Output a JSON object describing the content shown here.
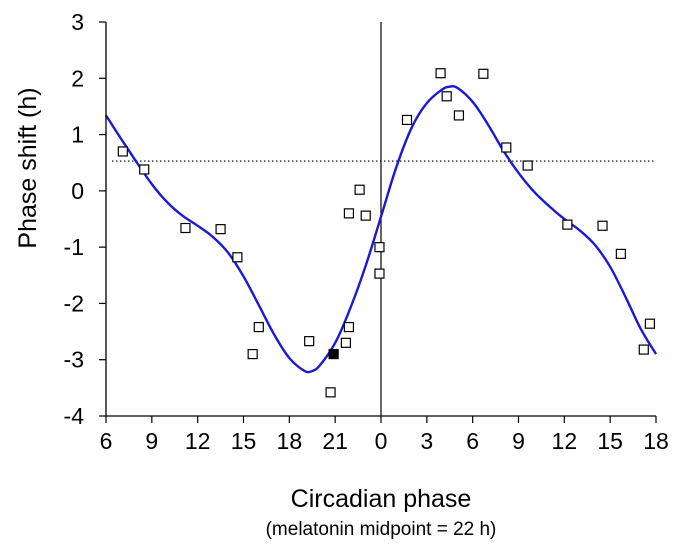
{
  "chart_data": {
    "type": "scatter",
    "xlabel": "Circadian phase",
    "x_sublabel": "(melatonin midpoint = 22 h)",
    "ylabel": "Phase shift (h)",
    "ylim": [
      -4,
      3
    ],
    "y_ticks": [
      3,
      2,
      1,
      0,
      -1,
      -2,
      -3,
      -4
    ],
    "x_continuous_range": [
      6,
      42
    ],
    "x_ticks": [
      {
        "x": 6,
        "label": "6"
      },
      {
        "x": 9,
        "label": "9"
      },
      {
        "x": 12,
        "label": "12"
      },
      {
        "x": 15,
        "label": "15"
      },
      {
        "x": 18,
        "label": "18"
      },
      {
        "x": 21,
        "label": "21"
      },
      {
        "x": 24,
        "label": "0"
      },
      {
        "x": 27,
        "label": "3"
      },
      {
        "x": 30,
        "label": "6"
      },
      {
        "x": 33,
        "label": "9"
      },
      {
        "x": 36,
        "label": "12"
      },
      {
        "x": 39,
        "label": "15"
      },
      {
        "x": 42,
        "label": "18"
      }
    ],
    "reference_vline_x": 24,
    "reference_hline_y": 0.53,
    "points_open": [
      [
        7.1,
        0.7
      ],
      [
        8.5,
        0.38
      ],
      [
        11.2,
        -0.66
      ],
      [
        13.5,
        -0.68
      ],
      [
        14.6,
        -1.18
      ],
      [
        16.0,
        -2.42
      ],
      [
        15.6,
        -2.9
      ],
      [
        19.3,
        -2.67
      ],
      [
        20.7,
        -3.58
      ],
      [
        21.7,
        -2.7
      ],
      [
        21.9,
        -2.42
      ],
      [
        21.9,
        -0.4
      ],
      [
        22.6,
        0.02
      ],
      [
        23.0,
        -0.44
      ],
      [
        23.9,
        -1.0
      ],
      [
        23.9,
        -1.47
      ],
      [
        25.7,
        1.26
      ],
      [
        27.9,
        2.09
      ],
      [
        28.3,
        1.68
      ],
      [
        29.1,
        1.34
      ],
      [
        30.7,
        2.08
      ],
      [
        32.2,
        0.77
      ],
      [
        33.6,
        0.45
      ],
      [
        36.2,
        -0.6
      ],
      [
        38.5,
        -0.62
      ],
      [
        39.7,
        -1.12
      ],
      [
        41.6,
        -2.36
      ],
      [
        41.2,
        -2.82
      ]
    ],
    "points_filled": [
      [
        20.9,
        -2.9
      ]
    ],
    "fitted_curve": [
      [
        6.0,
        1.34
      ],
      [
        7.0,
        0.92
      ],
      [
        8.0,
        0.51
      ],
      [
        9.0,
        0.12
      ],
      [
        10.0,
        -0.2
      ],
      [
        11.0,
        -0.44
      ],
      [
        12.0,
        -0.62
      ],
      [
        13.0,
        -0.82
      ],
      [
        14.0,
        -1.1
      ],
      [
        15.0,
        -1.52
      ],
      [
        16.0,
        -2.03
      ],
      [
        17.0,
        -2.55
      ],
      [
        18.0,
        -2.97
      ],
      [
        19.0,
        -3.2
      ],
      [
        19.5,
        -3.2
      ],
      [
        20.0,
        -3.1
      ],
      [
        21.0,
        -2.7
      ],
      [
        22.0,
        -2.08
      ],
      [
        23.0,
        -1.33
      ],
      [
        24.0,
        -0.46
      ],
      [
        25.0,
        0.42
      ],
      [
        26.0,
        1.12
      ],
      [
        27.0,
        1.56
      ],
      [
        28.0,
        1.8
      ],
      [
        28.5,
        1.85
      ],
      [
        29.0,
        1.83
      ],
      [
        30.0,
        1.58
      ],
      [
        31.0,
        1.18
      ],
      [
        32.0,
        0.72
      ],
      [
        33.0,
        0.32
      ],
      [
        34.0,
        -0.01
      ],
      [
        35.0,
        -0.27
      ],
      [
        36.0,
        -0.5
      ],
      [
        37.0,
        -0.7
      ],
      [
        38.0,
        -0.96
      ],
      [
        39.0,
        -1.35
      ],
      [
        40.0,
        -1.88
      ],
      [
        41.0,
        -2.45
      ],
      [
        42.0,
        -2.9
      ]
    ],
    "colors": {
      "curve": "#1a1ad6",
      "markers": "#000000",
      "axes": "#000000"
    },
    "grid": false,
    "legend": "none"
  }
}
